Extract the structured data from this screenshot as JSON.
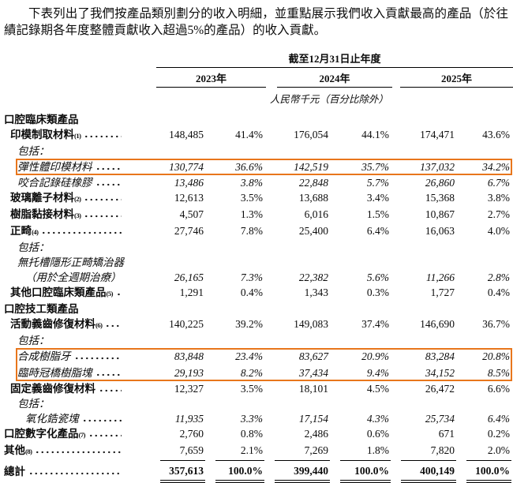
{
  "page": {
    "intro": "下表列出了我們按產品類別劃分的收入明細，並重點展示我們收入貢獻最高的產品（於往績記錄期各年度整體貢獻收入超過5%的產品）的收入貢獻。"
  },
  "table": {
    "period_header": "截至12月31日止年度",
    "years": [
      "2023年",
      "2024年",
      "2025年"
    ],
    "unit_note": "人民幣千元（百分比除外）",
    "highlight_color": "#e8761c",
    "rows": [
      {
        "label": "口腔臨床類產品",
        "type": "section"
      },
      {
        "label": "印模制取材料",
        "sup": "(1)",
        "type": "item",
        "leader": true,
        "values": [
          "148,485",
          "41.4%",
          "176,054",
          "44.1%",
          "174,471",
          "43.6%"
        ]
      },
      {
        "label": "包括：",
        "type": "sub"
      },
      {
        "label": "彈性體印模材料",
        "type": "sub",
        "leader": true,
        "highlight": true,
        "values": [
          "130,774",
          "36.6%",
          "142,519",
          "35.7%",
          "137,032",
          "34.2%"
        ]
      },
      {
        "label": "咬合記錄硅橡膠",
        "type": "sub",
        "leader": true,
        "values": [
          "13,486",
          "3.8%",
          "22,848",
          "5.7%",
          "26,860",
          "6.7%"
        ]
      },
      {
        "label": "玻璃離子材料",
        "sup": "(2)",
        "type": "item",
        "leader": true,
        "values": [
          "12,613",
          "3.5%",
          "13,688",
          "3.4%",
          "15,368",
          "3.8%"
        ]
      },
      {
        "label": "樹脂黏接材料",
        "sup": "(3)",
        "type": "item",
        "leader": true,
        "values": [
          "4,507",
          "1.3%",
          "6,016",
          "1.5%",
          "10,867",
          "2.7%"
        ]
      },
      {
        "label": "正畸",
        "sup": "(4)",
        "type": "item",
        "leader": true,
        "values": [
          "27,746",
          "7.8%",
          "25,400",
          "6.4%",
          "16,063",
          "4.0%"
        ]
      },
      {
        "label": "包括：",
        "type": "sub"
      },
      {
        "label": "無托槽隱形正畸矯治器",
        "type": "sub"
      },
      {
        "label": "（用於全週期治療）",
        "type": "sub2",
        "leader": true,
        "values": [
          "26,165",
          "7.3%",
          "22,382",
          "5.6%",
          "11,266",
          "2.8%"
        ]
      },
      {
        "label": "其他口腔臨床類產品",
        "sup": "(5)",
        "type": "item",
        "leader": true,
        "values": [
          "1,291",
          "0.4%",
          "1,343",
          "0.3%",
          "1,727",
          "0.4%"
        ]
      },
      {
        "label": "口腔技工類產品",
        "type": "section"
      },
      {
        "label": "活動義齒修復材料",
        "sup": "(6)",
        "type": "item",
        "leader": true,
        "values": [
          "140,225",
          "39.2%",
          "149,083",
          "37.4%",
          "146,690",
          "36.7%"
        ]
      },
      {
        "label": "包括：",
        "type": "sub"
      },
      {
        "label": "合成樹脂牙",
        "type": "sub",
        "leader": true,
        "highlight": true,
        "values": [
          "83,848",
          "23.4%",
          "83,627",
          "20.9%",
          "83,284",
          "20.8%"
        ]
      },
      {
        "label": "臨時冠橋樹脂塊",
        "type": "sub",
        "leader": true,
        "highlight": true,
        "values": [
          "29,193",
          "8.2%",
          "37,434",
          "9.4%",
          "34,152",
          "8.5%"
        ]
      },
      {
        "label": "固定義齒修復材料",
        "type": "item",
        "leader": true,
        "values": [
          "12,327",
          "3.5%",
          "18,101",
          "4.5%",
          "26,472",
          "6.6%"
        ]
      },
      {
        "label": "包括：",
        "type": "sub"
      },
      {
        "label": "氧化鋯瓷塊",
        "type": "sub2",
        "leader": true,
        "values": [
          "11,935",
          "3.3%",
          "17,154",
          "4.3%",
          "25,734",
          "6.4%"
        ]
      },
      {
        "label": "口腔數字化產品",
        "sup": "(7)",
        "type": "top-item",
        "leader": true,
        "values": [
          "2,760",
          "0.8%",
          "2,486",
          "0.6%",
          "671",
          "0.2%"
        ]
      },
      {
        "label": "其他",
        "sup": "(8)",
        "type": "top-item",
        "leader": true,
        "values": [
          "7,659",
          "2.1%",
          "7,269",
          "1.8%",
          "7,820",
          "2.0%"
        ]
      },
      {
        "label": "總計",
        "type": "total",
        "leader": true,
        "values": [
          "357,613",
          "100.0%",
          "399,440",
          "100.0%",
          "400,149",
          "100.0%"
        ]
      }
    ]
  }
}
